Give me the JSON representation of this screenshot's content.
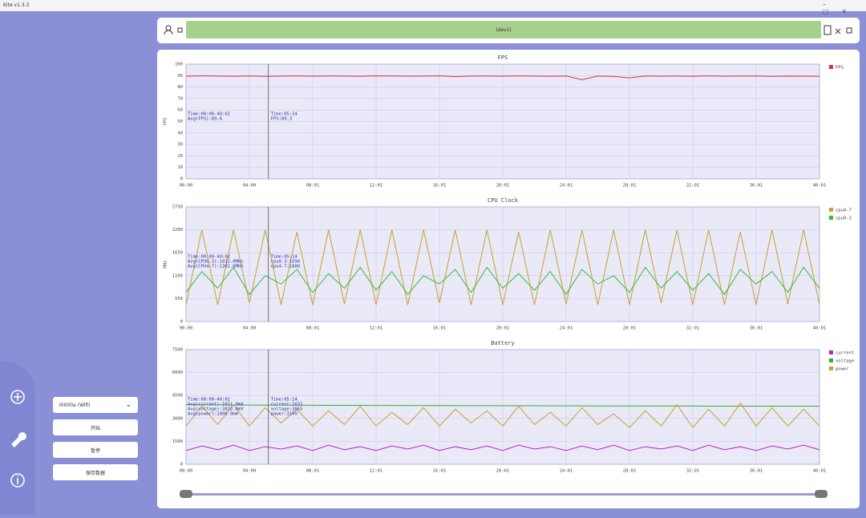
{
  "window": {
    "title": "Kite v1.3.3"
  },
  "toolbar": {
    "device": "(dev1)"
  },
  "sidebar": {
    "dropdown": "I0000a (Wifi)",
    "buttons": [
      "开始",
      "暂停",
      "保存数据"
    ]
  },
  "chart_data": [
    {
      "type": "line",
      "title": "FPS",
      "ylabel": "FPS",
      "xlim": [
        0,
        40
      ],
      "ylim": [
        0,
        100
      ],
      "yticks": [
        0,
        10,
        20,
        30,
        40,
        50,
        60,
        70,
        80,
        90,
        100
      ],
      "xticks": [
        {
          "value": 0,
          "label": "00:00"
        },
        {
          "value": 4,
          "label": "04:00"
        },
        {
          "value": 8,
          "label": "08:01"
        },
        {
          "value": 12,
          "label": "12:01"
        },
        {
          "value": 16,
          "label": "16:01"
        },
        {
          "value": 20,
          "label": "20:01"
        },
        {
          "value": 24,
          "label": "24:01"
        },
        {
          "value": 28,
          "label": "28:01"
        },
        {
          "value": 32,
          "label": "32:01"
        },
        {
          "value": 36,
          "label": "36:01"
        },
        {
          "value": 40,
          "label": "40:01"
        }
      ],
      "grid": true,
      "cursor_x": 5.2,
      "annotations": [
        "Time:00:00-40:02",
        "Avg(FPS):89.6"
      ],
      "cursor_labels": [
        "Time:05:14",
        "FPS:89.3"
      ],
      "x": [
        0,
        1,
        2,
        3,
        4,
        5,
        6,
        7,
        8,
        9,
        10,
        11,
        12,
        13,
        14,
        15,
        16,
        17,
        18,
        19,
        20,
        21,
        22,
        23,
        24,
        25,
        26,
        27,
        28,
        29,
        30,
        31,
        32,
        33,
        34,
        35,
        36,
        37,
        38,
        39,
        40
      ],
      "series": [
        {
          "name": "FPS",
          "color": "#e0304a",
          "values": [
            89.5,
            89.8,
            89.6,
            89.4,
            89.7,
            89.3,
            89.6,
            89.8,
            89.5,
            89.7,
            89.6,
            89.4,
            89.8,
            89.7,
            89.5,
            89.6,
            89.8,
            89.2,
            89.6,
            89.7,
            89.5,
            89.8,
            89.6,
            89.4,
            89.7,
            86.5,
            89.6,
            89.3,
            88.0,
            89.7,
            89.5,
            89.6,
            89.4,
            89.8,
            89.5,
            89.6,
            89.7,
            89.3,
            89.6,
            89.5,
            89.4
          ]
        }
      ]
    },
    {
      "type": "line",
      "title": "CPU Clock",
      "ylabel": "MHz",
      "xlim": [
        0,
        40
      ],
      "ylim": [
        0,
        2750
      ],
      "yticks": [
        0,
        550,
        1100,
        1650,
        2200,
        2750
      ],
      "xticks": [
        {
          "value": 0,
          "label": "00:00"
        },
        {
          "value": 4,
          "label": "04:00"
        },
        {
          "value": 8,
          "label": "08:01"
        },
        {
          "value": 12,
          "label": "12:01"
        },
        {
          "value": 16,
          "label": "16:01"
        },
        {
          "value": 20,
          "label": "20:01"
        },
        {
          "value": 24,
          "label": "24:01"
        },
        {
          "value": 28,
          "label": "28:01"
        },
        {
          "value": 32,
          "label": "32:01"
        },
        {
          "value": 36,
          "label": "36:01"
        },
        {
          "value": 40,
          "label": "40:01"
        }
      ],
      "grid": true,
      "cursor_x": 5.2,
      "annotations": [
        "Time:00:00-40:02",
        "Avg(CPU0-3):1012.0MHz",
        "Avg(CPU4-7):1301.0MHz"
      ],
      "cursor_labels": [
        "Time:05:14",
        "cpu0-3:1094",
        "cpu4-7:1800"
      ],
      "x": [
        0,
        1,
        2,
        3,
        4,
        5,
        6,
        7,
        8,
        9,
        10,
        11,
        12,
        13,
        14,
        15,
        16,
        17,
        18,
        19,
        20,
        21,
        22,
        23,
        24,
        25,
        26,
        27,
        28,
        29,
        30,
        31,
        32,
        33,
        34,
        35,
        36,
        37,
        38,
        39,
        40
      ],
      "series": [
        {
          "name": "cpu4-7",
          "color": "#c9a030",
          "values": [
            400,
            2200,
            400,
            2200,
            450,
            2200,
            400,
            2150,
            400,
            2200,
            420,
            2200,
            400,
            2200,
            400,
            2200,
            450,
            2200,
            400,
            2200,
            400,
            2150,
            400,
            2200,
            420,
            2200,
            400,
            2200,
            400,
            2200,
            450,
            2200,
            400,
            2200,
            400,
            2150,
            400,
            2200,
            420,
            2200,
            400
          ]
        },
        {
          "name": "cpu0-3",
          "color": "#3cb83c",
          "values": [
            700,
            1200,
            800,
            1300,
            650,
            1100,
            900,
            1250,
            700,
            1150,
            800,
            1300,
            750,
            1200,
            650,
            1100,
            900,
            1250,
            700,
            1300,
            800,
            1150,
            750,
            1200,
            650,
            1250,
            900,
            1100,
            700,
            1300,
            800,
            1200,
            750,
            1150,
            650,
            1250,
            900,
            1200,
            700,
            1300,
            800
          ]
        }
      ]
    },
    {
      "type": "line",
      "title": "Battery",
      "ylabel": "",
      "xlim": [
        0,
        40
      ],
      "ylim": [
        0,
        7500
      ],
      "yticks": [
        0,
        1500,
        3000,
        4500,
        6000,
        7500
      ],
      "xticks": [
        {
          "value": 0,
          "label": "00:00"
        },
        {
          "value": 4,
          "label": "04:00"
        },
        {
          "value": 8,
          "label": "08:01"
        },
        {
          "value": 12,
          "label": "12:01"
        },
        {
          "value": 16,
          "label": "16:01"
        },
        {
          "value": 20,
          "label": "20:01"
        },
        {
          "value": 24,
          "label": "24:01"
        },
        {
          "value": 28,
          "label": "28:01"
        },
        {
          "value": 32,
          "label": "32:01"
        },
        {
          "value": 36,
          "label": "36:01"
        },
        {
          "value": 40,
          "label": "40:01"
        }
      ],
      "grid": true,
      "cursor_x": 5.2,
      "annotations": [
        "Time:00:00-40:02",
        "Avg(current):1011.0mA",
        "Avg(voltage):3832.0mV",
        "Avg(power):2890.0mW"
      ],
      "cursor_labels": [
        "Time:05:14",
        "current:1032",
        "voltage:3865",
        "power:3100"
      ],
      "x": [
        0,
        1,
        2,
        3,
        4,
        5,
        6,
        7,
        8,
        9,
        10,
        11,
        12,
        13,
        14,
        15,
        16,
        17,
        18,
        19,
        20,
        21,
        22,
        23,
        24,
        25,
        26,
        27,
        28,
        29,
        30,
        31,
        32,
        33,
        34,
        35,
        36,
        37,
        38,
        39,
        40
      ],
      "series": [
        {
          "name": "current",
          "color": "#c020c0",
          "values": [
            900,
            1200,
            950,
            1250,
            900,
            1150,
            1000,
            1200,
            900,
            1250,
            950,
            1150,
            900,
            1200,
            1000,
            1250,
            900,
            1150,
            950,
            1200,
            900,
            1250,
            1000,
            1150,
            900,
            1200,
            950,
            1250,
            900,
            1150,
            1000,
            1200,
            900,
            1250,
            950,
            1150,
            900,
            1200,
            1000,
            1250,
            950
          ]
        },
        {
          "name": "voltage",
          "color": "#30b030",
          "values": [
            3900,
            3890,
            3885,
            3880,
            3875,
            3870,
            3868,
            3865,
            3860,
            3858,
            3855,
            3852,
            3850,
            3848,
            3845,
            3843,
            3840,
            3838,
            3835,
            3833,
            3830,
            3828,
            3826,
            3824,
            3822,
            3820,
            3818,
            3816,
            3814,
            3812,
            3810,
            3808,
            3806,
            3805,
            3804,
            3803,
            3802,
            3801,
            3800,
            3800,
            3800
          ]
        },
        {
          "name": "power",
          "color": "#c9a030",
          "values": [
            2500,
            3800,
            2600,
            3900,
            2500,
            3700,
            2700,
            3600,
            2500,
            3500,
            2600,
            3800,
            2500,
            3400,
            2600,
            3700,
            2500,
            3600,
            2700,
            3500,
            2500,
            3800,
            2600,
            3400,
            2500,
            3700,
            2600,
            3300,
            2400,
            3500,
            2500,
            3900,
            2400,
            3600,
            2500,
            4000,
            2500,
            3700,
            2500,
            3600,
            2500
          ]
        }
      ]
    }
  ]
}
